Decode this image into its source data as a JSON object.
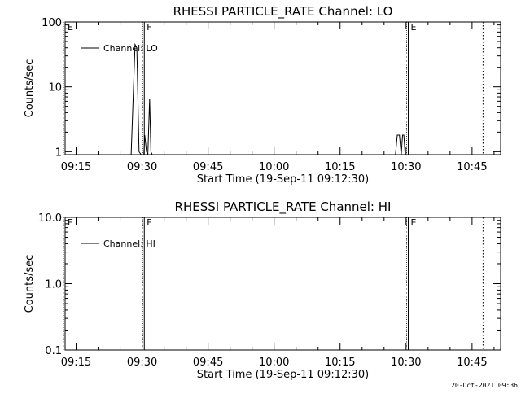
{
  "chart_data": [
    {
      "type": "line",
      "title": "RHESSI PARTICLE_RATE Channel: LO",
      "xlabel": "Start Time (19-Sep-11 09:12:30)",
      "ylabel": "Counts/sec",
      "x_tick_labels": [
        "09:15",
        "09:30",
        "09:45",
        "10:00",
        "10:15",
        "10:30",
        "10:45"
      ],
      "x_tick_minutes": [
        15,
        30,
        45,
        60,
        75,
        90,
        105
      ],
      "xlim_minutes": [
        12.5,
        111.5
      ],
      "yscale": "log",
      "ylim": [
        0.9,
        100
      ],
      "y_tick_values": [
        1,
        10,
        100
      ],
      "y_tick_labels": [
        "1",
        "10",
        "100"
      ],
      "grid": false,
      "legend": "top-left",
      "series": [
        {
          "name": "Channel: LO",
          "x_minutes": [
            27.5,
            28.4,
            28.8,
            29.3,
            29.8,
            30.4,
            30.6,
            31.0,
            31.3,
            31.7,
            32.0,
            32.3,
            32.6,
            33.0,
            33.4,
            87.6,
            88.0,
            88.5,
            88.9,
            89.2,
            89.5,
            89.8,
            90.2
          ],
          "values": [
            0.9,
            45,
            40,
            1.0,
            0.9,
            0.9,
            1.8,
            1.0,
            0.9,
            6.5,
            1.0,
            0.9,
            0.9,
            0.9,
            0.9,
            0.9,
            1.8,
            1.8,
            0.9,
            1.8,
            1.8,
            0.9,
            0.9
          ]
        }
      ],
      "markers": [
        {
          "label": "E",
          "minute": 12.5,
          "style": "solid"
        },
        {
          "label": "F",
          "minute": 30.5,
          "style": "solid"
        },
        {
          "label": "E",
          "minute": 90.5,
          "style": "solid"
        },
        {
          "label": "",
          "minute": 107.5,
          "style": "dotted"
        }
      ]
    },
    {
      "type": "line",
      "title": "RHESSI PARTICLE_RATE Channel: HI",
      "xlabel": "Start Time (19-Sep-11 09:12:30)",
      "ylabel": "Counts/sec",
      "x_tick_labels": [
        "09:15",
        "09:30",
        "09:45",
        "10:00",
        "10:15",
        "10:30",
        "10:45"
      ],
      "x_tick_minutes": [
        15,
        30,
        45,
        60,
        75,
        90,
        105
      ],
      "xlim_minutes": [
        12.5,
        111.5
      ],
      "yscale": "log",
      "ylim": [
        0.1,
        10
      ],
      "y_tick_values": [
        0.1,
        1,
        10
      ],
      "y_tick_labels": [
        "0.1",
        "1.0",
        "10.0"
      ],
      "grid": false,
      "legend": "top-left",
      "series": [
        {
          "name": "Channel: HI",
          "x_minutes": [],
          "values": []
        }
      ],
      "markers": [
        {
          "label": "E",
          "minute": 12.5,
          "style": "solid"
        },
        {
          "label": "F",
          "minute": 30.5,
          "style": "solid"
        },
        {
          "label": "E",
          "minute": 90.5,
          "style": "solid"
        },
        {
          "label": "",
          "minute": 107.5,
          "style": "dotted"
        }
      ]
    }
  ],
  "footer": {
    "timestamp": "20-Oct-2021 09:36"
  }
}
